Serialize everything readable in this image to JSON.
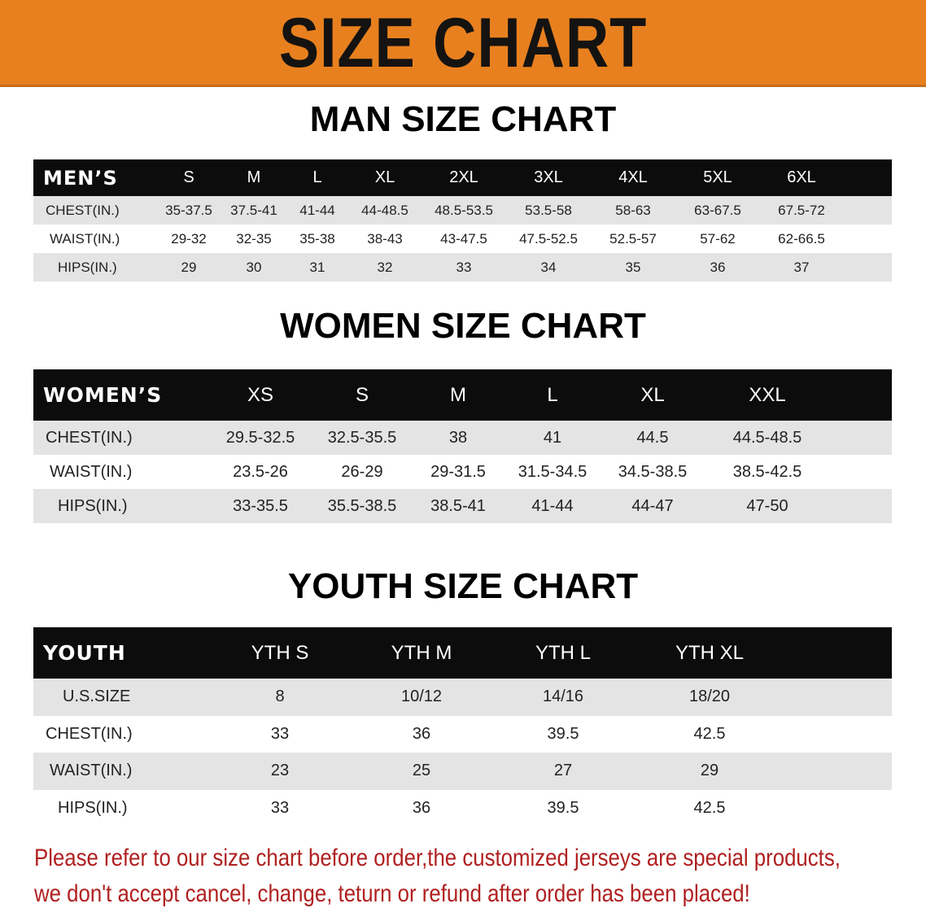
{
  "banner": {
    "title": "SIZE CHART",
    "color": "#e8801f"
  },
  "men": {
    "title": "MAN SIZE CHART",
    "header_label": "MEN’S",
    "sizes": [
      "S",
      "M",
      "L",
      "XL",
      "2XL",
      "3XL",
      "4XL",
      "5XL",
      "6XL"
    ],
    "rows": [
      {
        "label": "CHEST(IN.)",
        "values": [
          "35-37.5",
          "37.5-41",
          "41-44",
          "44-48.5",
          "48.5-53.5",
          "53.5-58",
          "58-63",
          "63-67.5",
          "67.5-72"
        ]
      },
      {
        "label": "WAIST(IN.)",
        "values": [
          "29-32",
          "32-35",
          "35-38",
          "38-43",
          "43-47.5",
          "47.5-52.5",
          "52.5-57",
          "57-62",
          "62-66.5"
        ]
      },
      {
        "label": "HIPS(IN.)",
        "values": [
          "29",
          "30",
          "31",
          "32",
          "33",
          "34",
          "35",
          "36",
          "37"
        ]
      }
    ]
  },
  "women": {
    "title": "WOMEN SIZE CHART",
    "header_label": "WOMEN’S",
    "sizes": [
      "XS",
      "S",
      "M",
      "L",
      "XL",
      "XXL"
    ],
    "rows": [
      {
        "label": "CHEST(IN.)",
        "values": [
          "29.5-32.5",
          "32.5-35.5",
          "38",
          "41",
          "44.5",
          "44.5-48.5"
        ]
      },
      {
        "label": "WAIST(IN.)",
        "values": [
          "23.5-26",
          "26-29",
          "29-31.5",
          "31.5-34.5",
          "34.5-38.5",
          "38.5-42.5"
        ]
      },
      {
        "label": "HIPS(IN.)",
        "values": [
          "33-35.5",
          "35.5-38.5",
          "38.5-41",
          "41-44",
          "44-47",
          "47-50"
        ]
      }
    ]
  },
  "youth": {
    "title": "YOUTH SIZE CHART",
    "header_label": "YOUTH",
    "sizes": [
      "YTH S",
      "YTH M",
      "YTH L",
      "YTH XL"
    ],
    "rows": [
      {
        "label": "U.S.SIZE",
        "values": [
          "8",
          "10/12",
          "14/16",
          "18/20"
        ]
      },
      {
        "label": "CHEST(IN.)",
        "values": [
          "33",
          "36",
          "39.5",
          "42.5"
        ]
      },
      {
        "label": "WAIST(IN.)",
        "values": [
          "23",
          "25",
          "27",
          "29"
        ]
      },
      {
        "label": "HIPS(IN.)",
        "values": [
          "33",
          "36",
          "39.5",
          "42.5"
        ]
      }
    ]
  },
  "notice": {
    "line1": "Please refer to our size chart before order,the customized jerseys are special products,",
    "line2": "we don't accept cancel, change, teturn or refund after order has been placed!"
  }
}
